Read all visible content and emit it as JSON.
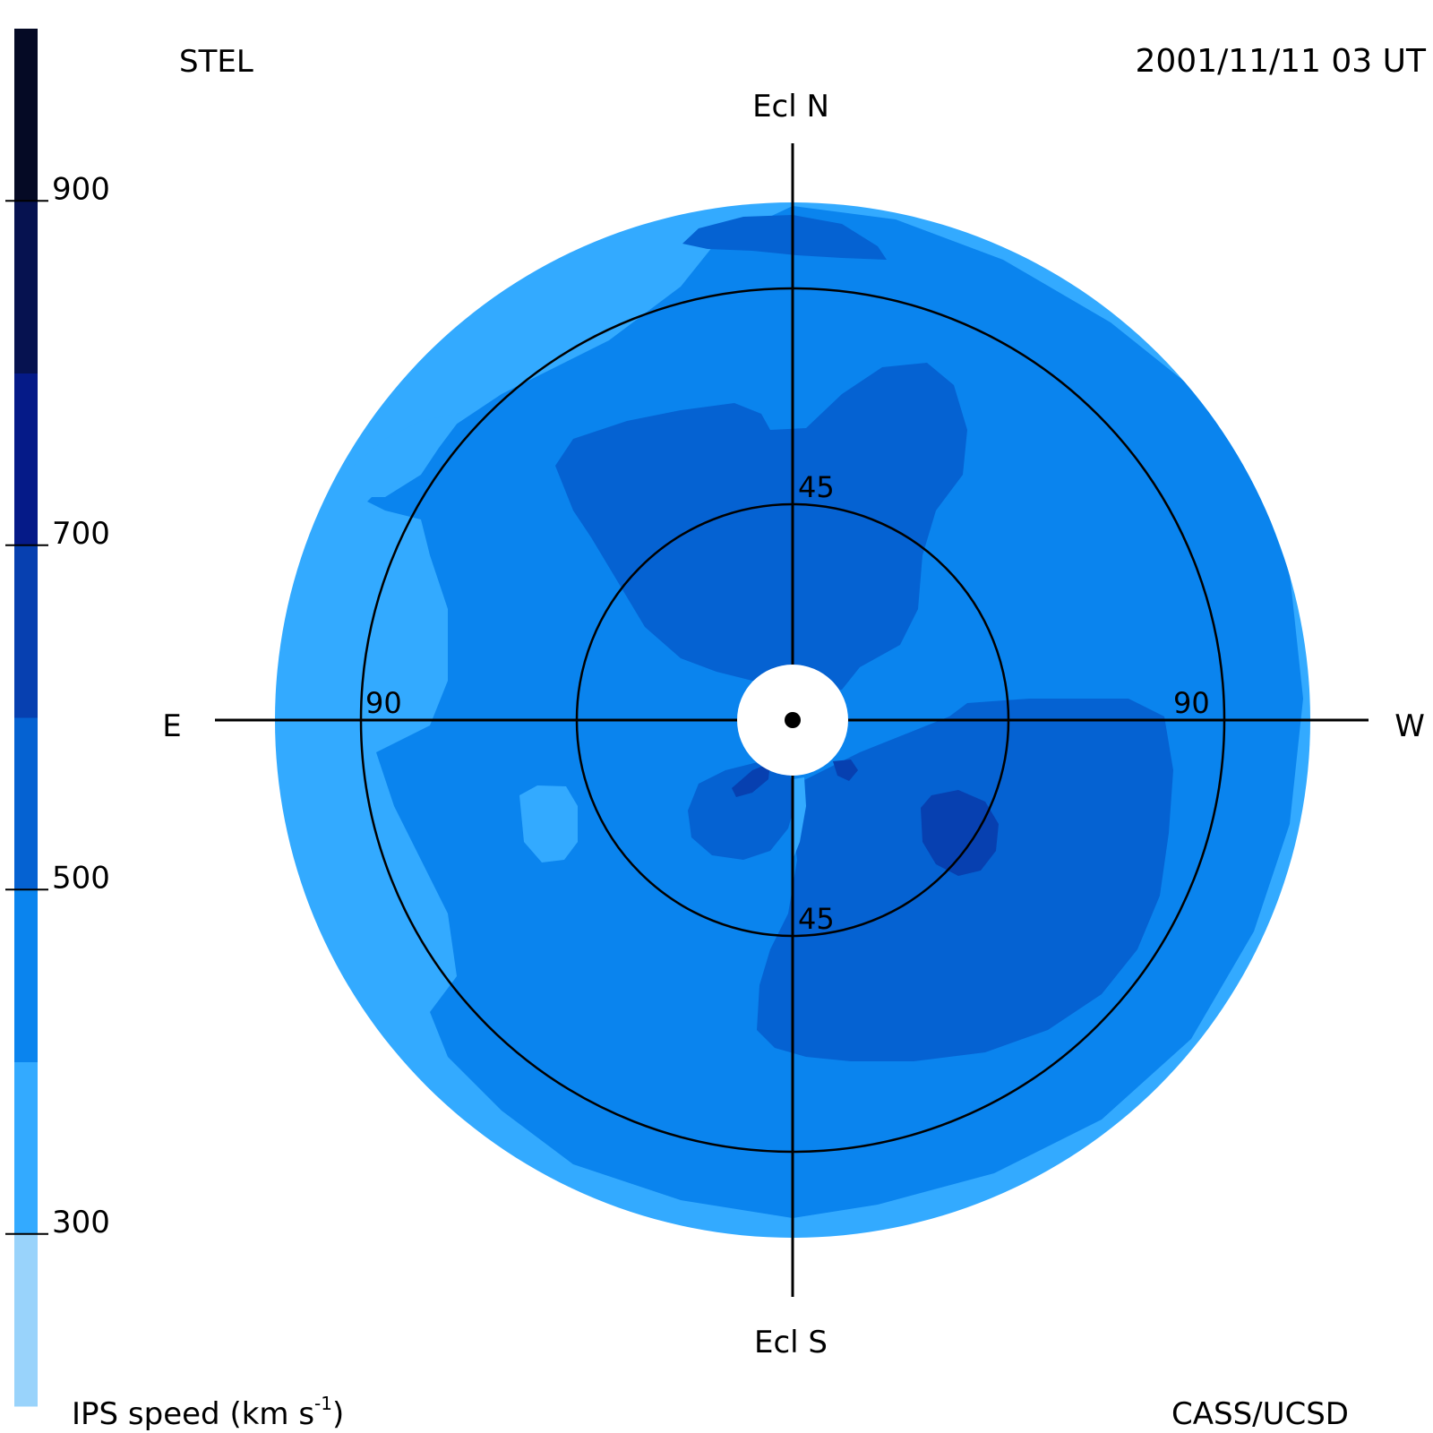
{
  "header": {
    "observatory": "STEL",
    "timestamp": "2001/11/11 03 UT",
    "credit": "CASS/UCSD"
  },
  "colorbar": {
    "title_main": "IPS speed (km s",
    "title_exp": "-1",
    "title_close": ")",
    "range": [
      200,
      1000
    ],
    "ticks": [
      "900",
      "700",
      "500",
      "300"
    ],
    "tick_values": [
      900,
      700,
      500,
      300
    ],
    "bands": [
      {
        "from": 200,
        "to": 300,
        "color": "#99d3fb"
      },
      {
        "from": 300,
        "to": 400,
        "color": "#33aaff"
      },
      {
        "from": 400,
        "to": 500,
        "color": "#0a84ee"
      },
      {
        "from": 500,
        "to": 600,
        "color": "#0562d2"
      },
      {
        "from": 600,
        "to": 700,
        "color": "#0740b0"
      },
      {
        "from": 700,
        "to": 800,
        "color": "#051a88"
      },
      {
        "from": 800,
        "to": 900,
        "color": "#061250"
      },
      {
        "from": 900,
        "to": 1000,
        "color": "#050a25"
      }
    ]
  },
  "skymap": {
    "labels": {
      "north": "Ecl N",
      "south": "Ecl S",
      "east": "E",
      "west": "W"
    },
    "ring_labels": {
      "inner_top": "45",
      "inner_bottom": "45",
      "outer_left": "90",
      "outer_right": "90"
    },
    "colors": {
      "speed_300_400": "#33aaff",
      "speed_400_500": "#0a84ee",
      "speed_500_600": "#0562d2",
      "speed_600_700": "#0740b0",
      "sun_occulter": "#ffffff",
      "grid": "#000000"
    }
  }
}
